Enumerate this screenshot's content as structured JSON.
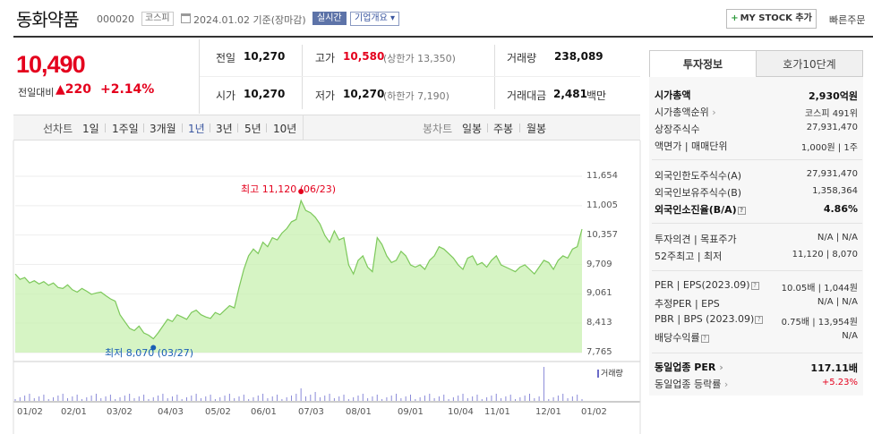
{
  "header": {
    "name": "동화약품",
    "code": "000020",
    "market": "코스피",
    "date": "2024.01.02 기준(장마감)",
    "realtime": "실시간",
    "corp_info": "기업개요",
    "mystock": "MY STOCK 추가",
    "quick_order": "빠른주문"
  },
  "quote": {
    "price": "10,490",
    "change_label": "전일대비",
    "change": "▲220",
    "change_pct": "+2.14%",
    "prev_label": "전일",
    "prev": "10,270",
    "high_label": "고가",
    "high": "10,580",
    "upper_limit": "(상한가 13,350)",
    "volume_label": "거래량",
    "volume": "238,089",
    "open_label": "시가",
    "open": "10,270",
    "low_label": "저가",
    "low": "10,270",
    "lower_limit": "(하한가 7,190)",
    "amount_label": "거래대금",
    "amount": "2,481",
    "amount_unit": "백만"
  },
  "toolbar": {
    "line_label": "선차트",
    "periods": [
      "1일",
      "1주일",
      "3개월",
      "1년",
      "3년",
      "5년",
      "10년"
    ],
    "selected_period": "1년",
    "candle_label": "봉차트",
    "candles": [
      "일봉",
      "주봉",
      "월봉"
    ]
  },
  "chart_data": {
    "type": "area",
    "y_ticks": [
      "11,654",
      "11,005",
      "10,357",
      "9,709",
      "9,061",
      "8,413",
      "7,765"
    ],
    "ylim": [
      7765,
      11654
    ],
    "x_ticks": [
      "01/02",
      "02/01",
      "03/02",
      "04/03",
      "05/02",
      "06/01",
      "07/03",
      "08/01",
      "09/01",
      "10/04",
      "11/01",
      "12/01",
      "01/02"
    ],
    "high_note": "최고 11,120 (06/23)",
    "low_note": "최저 8,070 (03/27)",
    "volume_legend": "거래량",
    "series": [
      {
        "values": [
          9500,
          9380,
          9420,
          9300,
          9350,
          9280,
          9330,
          9250,
          9300,
          9200,
          9180,
          9260,
          9150,
          9100,
          9180,
          9120,
          9050,
          9080,
          9100,
          9020,
          8950,
          8900,
          8600,
          8450,
          8300,
          8250,
          8350,
          8200,
          8150,
          8070,
          8200,
          8350,
          8500,
          8450,
          8600,
          8550,
          8500,
          8650,
          8700,
          8600,
          8550,
          8520,
          8650,
          8600,
          8700,
          8800,
          8750,
          9200,
          9600,
          9900,
          10050,
          9950,
          10200,
          10100,
          10300,
          10250,
          10400,
          10500,
          10650,
          10700,
          11120,
          10900,
          10850,
          10750,
          10600,
          10350,
          10200,
          10450,
          10250,
          10300,
          9700,
          9500,
          9800,
          9900,
          9650,
          9550,
          10300,
          10150,
          9900,
          9750,
          9800,
          10000,
          9900,
          9700,
          9650,
          9700,
          9600,
          9800,
          9900,
          10100,
          10050,
          9950,
          9850,
          9700,
          9600,
          9850,
          9900,
          9700,
          9750,
          9650,
          9800,
          9900,
          9700,
          9650,
          9600,
          9550,
          9650,
          9700,
          9600,
          9500,
          9650,
          9800,
          9750,
          9600,
          9800,
          9900,
          9850,
          10050,
          10100,
          10490
        ]
      }
    ]
  },
  "panel": {
    "tabs": [
      "투자정보",
      "호가10단계"
    ],
    "rows": [
      {
        "label": "시가총액",
        "value": "2,930억원"
      },
      {
        "label": "시가총액순위",
        "value": "코스피 491위"
      },
      {
        "label": "상장주식수",
        "value": "27,931,470"
      },
      {
        "label": "액면가 | 매매단위",
        "value": "1,000원 | 1주"
      },
      {
        "label": "외국인한도주식수(A)",
        "value": "27,931,470"
      },
      {
        "label": "외국인보유주식수(B)",
        "value": "1,358,364"
      },
      {
        "label": "외국인소진율(B/A)",
        "value": "4.86%"
      },
      {
        "label": "투자의견 | 목표주가",
        "value": "N/A | N/A"
      },
      {
        "label": "52주최고 | 최저",
        "value": "11,120 | 8,070"
      },
      {
        "label": "PER | EPS(2023.09)",
        "value": "10.05배 | 1,044원"
      },
      {
        "label": "추정PER | EPS",
        "value": "N/A | N/A"
      },
      {
        "label": "PBR | BPS (2023.09)",
        "value": "0.75배 | 13,954원"
      },
      {
        "label": "배당수익률",
        "value": "N/A"
      },
      {
        "label": "동일업종 PER",
        "value": "117.11배"
      },
      {
        "label": "동일업종 등락률",
        "value": "+5.23%"
      }
    ]
  },
  "colors": {
    "up": "#e4001d",
    "down": "#1a5fb4",
    "area": "#c8f0b0",
    "line": "#7cc85a"
  }
}
